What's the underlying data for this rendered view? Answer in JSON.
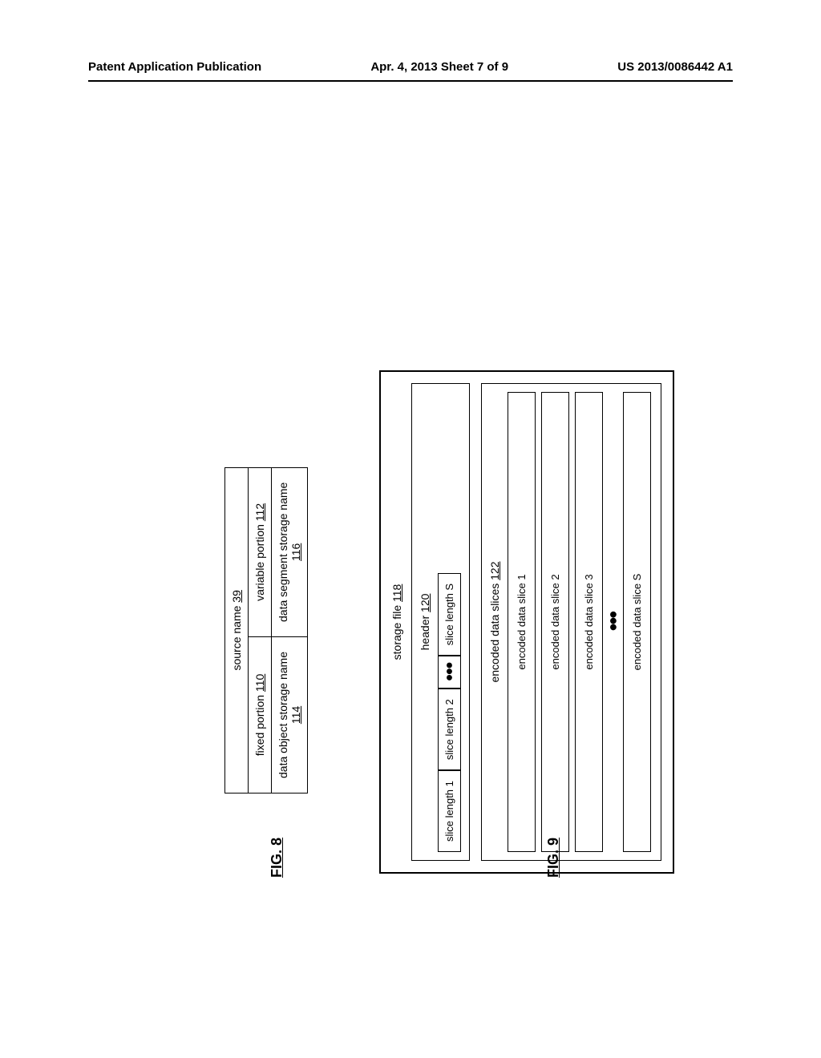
{
  "page_header": {
    "left": "Patent Application Publication",
    "center": "Apr. 4, 2013  Sheet 7 of 9",
    "right": "US 2013/0086442 A1"
  },
  "fig8": {
    "label": "FIG. 8",
    "source_name": {
      "text": "source name",
      "ref": "39"
    },
    "fixed_portion": {
      "text": "fixed portion",
      "ref": "110"
    },
    "variable_portion": {
      "text": "variable portion",
      "ref": "112"
    },
    "data_object_storage": {
      "text": "data object storage name",
      "ref": "114"
    },
    "data_segment_storage": {
      "text": "data segment storage name",
      "ref": "116"
    }
  },
  "fig9": {
    "label": "FIG. 9",
    "storage_file": {
      "text": "storage file",
      "ref": "118"
    },
    "header": {
      "text": "header",
      "ref": "120"
    },
    "slice_lengths": [
      "slice length 1",
      "slice length 2",
      "slice length S"
    ],
    "encoded_slices_title": {
      "text": "encoded data slices",
      "ref": "122"
    },
    "slices": [
      "encoded data slice 1",
      "encoded data slice 2",
      "encoded data slice 3",
      "encoded data slice S"
    ]
  },
  "dots": "●●●"
}
